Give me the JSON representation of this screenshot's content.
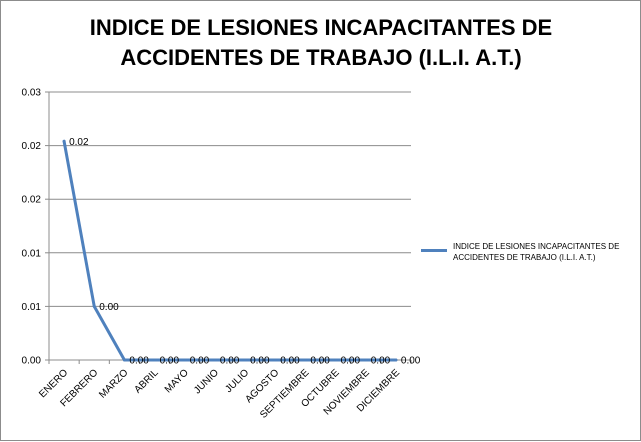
{
  "chart_data": {
    "type": "line",
    "title": "INDICE DE LESIONES INCAPACITANTES DE ACCIDENTES DE TRABAJO (I.L.I. A.T.)",
    "xlabel": "",
    "ylabel": "",
    "categories": [
      "ENERO",
      "FEBRERO",
      "MARZO",
      "ABRIL",
      "MAYO",
      "JUNIO",
      "JULIO",
      "AGOSTO",
      "SEPTIEMBRE",
      "OCTUBRE",
      "NOVIEMBRE",
      "DICIEMBRE"
    ],
    "y_ticks": [
      "0.00",
      "0.01",
      "0.01",
      "0.02",
      "0.02",
      "0.03"
    ],
    "ylim": [
      0,
      0.025
    ],
    "grid": true,
    "legend_position": "right",
    "series": [
      {
        "name": "INDICE DE LESIONES INCAPACITANTES DE ACCIDENTES DE TRABAJO (I.L.I. A.T.)",
        "color": "#4f81bd",
        "values": [
          0.0204,
          0.005,
          0,
          0,
          0,
          0,
          0,
          0,
          0,
          0,
          0,
          0
        ],
        "labels": [
          "0.02",
          "0.00",
          "0.00",
          "0.00",
          "0.00",
          "0.00",
          "0.00",
          "0.00",
          "0.00",
          "0.00",
          "0.00",
          "0.00"
        ]
      }
    ]
  }
}
